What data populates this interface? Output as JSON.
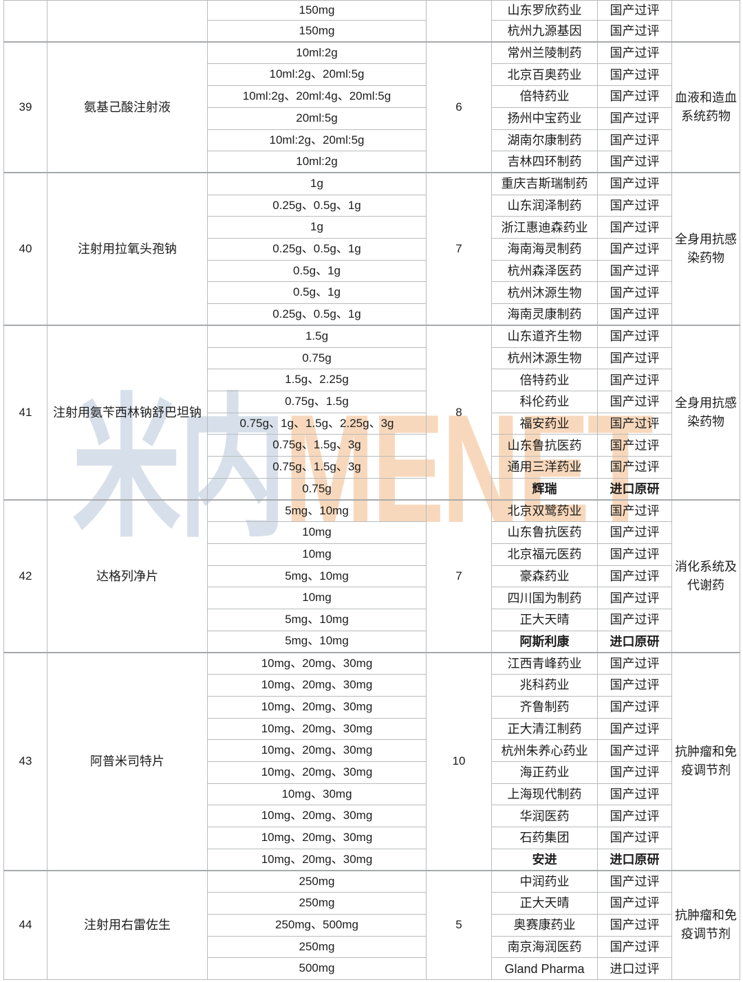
{
  "watermark": {
    "cjk_text": "米内",
    "latin_text": "MENET",
    "cjk_color": "#d7e0ea",
    "latin_color": "#f8d8bc"
  },
  "statuses": {
    "domestic_passed": "国产过评",
    "import_original": "进口原研",
    "import_passed": "进口过评"
  },
  "groups": [
    {
      "no": "",
      "name": "",
      "count": "",
      "category": "",
      "rows": [
        {
          "spec": "150mg",
          "company": "山东罗欣药业",
          "status": "国产过评",
          "bold": false
        },
        {
          "spec": "150mg",
          "company": "杭州九源基因",
          "status": "国产过评",
          "bold": false
        }
      ]
    },
    {
      "no": "39",
      "name": "氨基己酸注射液",
      "count": "6",
      "category": "血液和造血系统药物",
      "rows": [
        {
          "spec": "10ml:2g",
          "company": "常州兰陵制药",
          "status": "国产过评",
          "bold": false
        },
        {
          "spec": "10ml:2g、20ml:5g",
          "company": "北京百奥药业",
          "status": "国产过评",
          "bold": false
        },
        {
          "spec": "10ml:2g、20ml:4g、20ml:5g",
          "company": "倍特药业",
          "status": "国产过评",
          "bold": false
        },
        {
          "spec": "20ml:5g",
          "company": "扬州中宝药业",
          "status": "国产过评",
          "bold": false
        },
        {
          "spec": "10ml:2g、20ml:5g",
          "company": "湖南尔康制药",
          "status": "国产过评",
          "bold": false
        },
        {
          "spec": "10ml:2g",
          "company": "吉林四环制药",
          "status": "国产过评",
          "bold": false
        }
      ]
    },
    {
      "no": "40",
      "name": "注射用拉氧头孢钠",
      "count": "7",
      "category": "全身用抗感染药物",
      "rows": [
        {
          "spec": "1g",
          "company": "重庆吉斯瑞制药",
          "status": "国产过评",
          "bold": false
        },
        {
          "spec": "0.25g、0.5g、1g",
          "company": "山东润泽制药",
          "status": "国产过评",
          "bold": false
        },
        {
          "spec": "1g",
          "company": "浙江惠迪森药业",
          "status": "国产过评",
          "bold": false
        },
        {
          "spec": "0.25g、0.5g、1g",
          "company": "海南海灵制药",
          "status": "国产过评",
          "bold": false
        },
        {
          "spec": "0.5g、1g",
          "company": "杭州森泽医药",
          "status": "国产过评",
          "bold": false
        },
        {
          "spec": "0.5g、1g",
          "company": "杭州沐源生物",
          "status": "国产过评",
          "bold": false
        },
        {
          "spec": "0.25g、0.5g、1g",
          "company": "海南灵康制药",
          "status": "国产过评",
          "bold": false
        }
      ]
    },
    {
      "no": "41",
      "name": "注射用氨苄西林钠舒巴坦钠",
      "count": "8",
      "category": "全身用抗感染药物",
      "rows": [
        {
          "spec": "1.5g",
          "company": "山东道齐生物",
          "status": "国产过评",
          "bold": false
        },
        {
          "spec": "0.75g",
          "company": "杭州沐源生物",
          "status": "国产过评",
          "bold": false
        },
        {
          "spec": "1.5g、2.25g",
          "company": "倍特药业",
          "status": "国产过评",
          "bold": false
        },
        {
          "spec": "0.75g、1.5g",
          "company": "科伦药业",
          "status": "国产过评",
          "bold": false
        },
        {
          "spec": "0.75g、1g、1.5g、2.25g、3g",
          "company": "福安药业",
          "status": "国产过评",
          "bold": false
        },
        {
          "spec": "0.75g、1.5g、3g",
          "company": "山东鲁抗医药",
          "status": "国产过评",
          "bold": false
        },
        {
          "spec": "0.75g、1.5g、3g",
          "company": "通用三洋药业",
          "status": "国产过评",
          "bold": false
        },
        {
          "spec": "0.75g",
          "company": "辉瑞",
          "status": "进口原研",
          "bold": true
        }
      ]
    },
    {
      "no": "42",
      "name": "达格列净片",
      "count": "7",
      "category": "消化系统及代谢药",
      "rows": [
        {
          "spec": "5mg、10mg",
          "company": "北京双鹭药业",
          "status": "国产过评",
          "bold": false
        },
        {
          "spec": "10mg",
          "company": "山东鲁抗医药",
          "status": "国产过评",
          "bold": false
        },
        {
          "spec": "10mg",
          "company": "北京福元医药",
          "status": "国产过评",
          "bold": false
        },
        {
          "spec": "5mg、10mg",
          "company": "豪森药业",
          "status": "国产过评",
          "bold": false
        },
        {
          "spec": "10mg",
          "company": "四川国为制药",
          "status": "国产过评",
          "bold": false
        },
        {
          "spec": "5mg、10mg",
          "company": "正大天晴",
          "status": "国产过评",
          "bold": false
        },
        {
          "spec": "5mg、10mg",
          "company": "阿斯利康",
          "status": "进口原研",
          "bold": true
        }
      ]
    },
    {
      "no": "43",
      "name": "阿普米司特片",
      "count": "10",
      "category": "抗肿瘤和免疫调节剂",
      "rows": [
        {
          "spec": "10mg、20mg、30mg",
          "company": "江西青峰药业",
          "status": "国产过评",
          "bold": false
        },
        {
          "spec": "10mg、20mg、30mg",
          "company": "兆科药业",
          "status": "国产过评",
          "bold": false
        },
        {
          "spec": "10mg、20mg、30mg",
          "company": "齐鲁制药",
          "status": "国产过评",
          "bold": false
        },
        {
          "spec": "10mg、20mg、30mg",
          "company": "正大清江制药",
          "status": "国产过评",
          "bold": false
        },
        {
          "spec": "10mg、20mg、30mg",
          "company": "杭州朱养心药业",
          "status": "国产过评",
          "bold": false
        },
        {
          "spec": "10mg、20mg、30mg",
          "company": "海正药业",
          "status": "国产过评",
          "bold": false
        },
        {
          "spec": "10mg、30mg",
          "company": "上海现代制药",
          "status": "国产过评",
          "bold": false
        },
        {
          "spec": "10mg、20mg、30mg",
          "company": "华润医药",
          "status": "国产过评",
          "bold": false
        },
        {
          "spec": "10mg、20mg、30mg",
          "company": "石药集团",
          "status": "国产过评",
          "bold": false
        },
        {
          "spec": "10mg、20mg、30mg",
          "company": "安进",
          "status": "进口原研",
          "bold": true
        }
      ]
    },
    {
      "no": "44",
      "name": "注射用右雷佐生",
      "count": "5",
      "category": "抗肿瘤和免疫调节剂",
      "rows": [
        {
          "spec": "250mg",
          "company": "中润药业",
          "status": "国产过评",
          "bold": false
        },
        {
          "spec": "250mg",
          "company": "正大天晴",
          "status": "国产过评",
          "bold": false
        },
        {
          "spec": "250mg、500mg",
          "company": "奥赛康药业",
          "status": "国产过评",
          "bold": false
        },
        {
          "spec": "250mg",
          "company": "南京海润医药",
          "status": "国产过评",
          "bold": false
        },
        {
          "spec": "500mg",
          "company": "Gland Pharma",
          "status": "进口过评",
          "bold": false
        }
      ]
    }
  ]
}
